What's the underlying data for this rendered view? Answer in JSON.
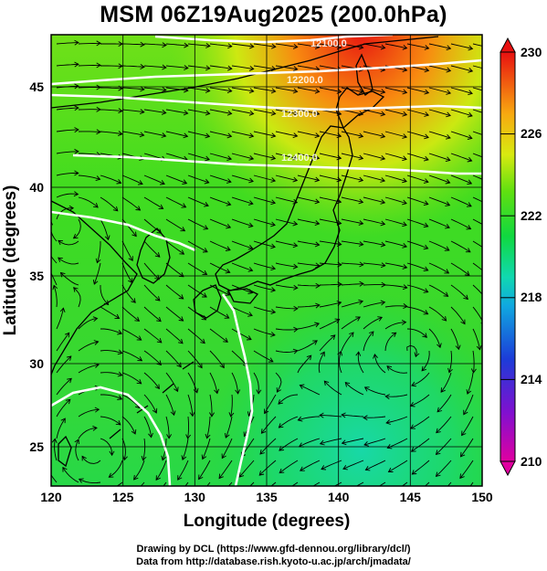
{
  "title": "MSM 06Z19Aug2025 (200.0hPa)",
  "credits": {
    "line1": "Drawing by DCL (https://www.gfd-dennou.org/library/dcl/)",
    "line2": "Data from http://database.rish.kyoto-u.ac.jp/arch/jmadata/"
  },
  "chart_data": {
    "type": "heatmap",
    "title": "MSM 06Z19Aug2025 (200.0hPa)",
    "xlabel": "Longitude (degrees)",
    "ylabel": "Latitude  (degrees)",
    "xlim": [
      120,
      150
    ],
    "ylim": [
      22.4,
      47.6
    ],
    "x_ticks": [
      120,
      125,
      130,
      135,
      140,
      145,
      150
    ],
    "y_ticks": [
      25,
      30,
      35,
      40,
      45
    ],
    "grid": true,
    "colorbar": {
      "range": [
        210,
        230
      ],
      "ticks": [
        210,
        214,
        218,
        222,
        226,
        230
      ],
      "colors": [
        "#e6007e",
        "#6a10c0",
        "#1c3cd8",
        "#10a8e0",
        "#10d8a0",
        "#10d840",
        "#48e010",
        "#d8ea10",
        "#f8b810",
        "#f86010",
        "#e81010"
      ]
    },
    "contours": [
      {
        "label": "12100.0",
        "lon": 136.8,
        "lat": 47.0
      },
      {
        "label": "12200.0",
        "lon": 135.6,
        "lat": 45.6
      },
      {
        "label": "12300.0",
        "lon": 135.2,
        "lat": 43.7
      },
      {
        "label": "12400.0",
        "lon": 134.8,
        "lat": 41.5
      }
    ],
    "cyclonic_centers": [
      {
        "lon": 121.2,
        "lat": 37.3
      },
      {
        "lon": 145.0,
        "lat": 30.0
      },
      {
        "lon": 123.0,
        "lat": 24.2
      }
    ],
    "field_description_levels": {
      "warm_max_north": 229,
      "green_background": 222,
      "cool_southeast": 219
    }
  }
}
